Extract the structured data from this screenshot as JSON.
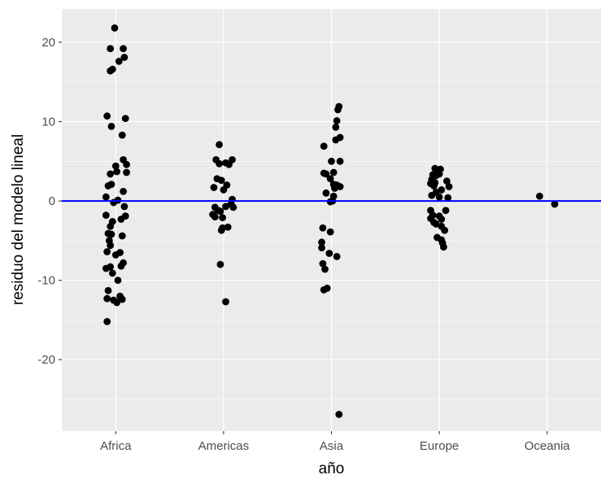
{
  "chart_data": {
    "type": "scatter",
    "title": "",
    "xlabel": "año",
    "ylabel": "residuo del modelo lineal",
    "categories": [
      "Africa",
      "Americas",
      "Asia",
      "Europe",
      "Oceania"
    ],
    "ylim": [
      -29.0,
      24.2
    ],
    "yticks": [
      -20,
      -10,
      0,
      10,
      20
    ],
    "ytick_labels": [
      "-20",
      "-10",
      "0",
      "10",
      "20"
    ],
    "grid": true,
    "panel_background": "#ebebeb",
    "grid_color": "#ffffff",
    "point_color": "#000000",
    "hline": {
      "y": 0,
      "color": "#0000ff"
    },
    "series": [
      {
        "category": "Africa",
        "points": [
          {
            "dx": -0.01,
            "y": 21.8
          },
          {
            "dx": -0.05,
            "y": 19.2
          },
          {
            "dx": 0.07,
            "y": 19.2
          },
          {
            "dx": 0.08,
            "y": 18.1
          },
          {
            "dx": 0.03,
            "y": 17.6
          },
          {
            "dx": -0.03,
            "y": 16.6
          },
          {
            "dx": -0.05,
            "y": 16.4
          },
          {
            "dx": -0.08,
            "y": 10.7
          },
          {
            "dx": 0.09,
            "y": 10.4
          },
          {
            "dx": -0.04,
            "y": 9.4
          },
          {
            "dx": 0.06,
            "y": 8.3
          },
          {
            "dx": 0.07,
            "y": 5.2
          },
          {
            "dx": 0.1,
            "y": 4.6
          },
          {
            "dx": 0.0,
            "y": 4.4
          },
          {
            "dx": 0.01,
            "y": 3.7
          },
          {
            "dx": -0.05,
            "y": 3.4
          },
          {
            "dx": 0.1,
            "y": 3.6
          },
          {
            "dx": -0.04,
            "y": 2.1
          },
          {
            "dx": -0.07,
            "y": 1.9
          },
          {
            "dx": 0.07,
            "y": 1.2
          },
          {
            "dx": -0.09,
            "y": 0.5
          },
          {
            "dx": 0.02,
            "y": 0.1
          },
          {
            "dx": -0.02,
            "y": -0.2
          },
          {
            "dx": 0.08,
            "y": -0.7
          },
          {
            "dx": -0.09,
            "y": -1.8
          },
          {
            "dx": 0.09,
            "y": -1.9
          },
          {
            "dx": 0.05,
            "y": -2.3
          },
          {
            "dx": -0.03,
            "y": -2.6
          },
          {
            "dx": -0.05,
            "y": -3.2
          },
          {
            "dx": -0.07,
            "y": -4.1
          },
          {
            "dx": 0.06,
            "y": -4.4
          },
          {
            "dx": -0.04,
            "y": -4.2
          },
          {
            "dx": -0.06,
            "y": -5.0
          },
          {
            "dx": -0.05,
            "y": -5.6
          },
          {
            "dx": -0.08,
            "y": -6.4
          },
          {
            "dx": 0.04,
            "y": -6.5
          },
          {
            "dx": 0.0,
            "y": -6.8
          },
          {
            "dx": 0.07,
            "y": -7.8
          },
          {
            "dx": 0.05,
            "y": -8.2
          },
          {
            "dx": -0.05,
            "y": -8.3
          },
          {
            "dx": -0.09,
            "y": -8.5
          },
          {
            "dx": -0.03,
            "y": -9.1
          },
          {
            "dx": 0.02,
            "y": -10.0
          },
          {
            "dx": -0.07,
            "y": -11.3
          },
          {
            "dx": 0.04,
            "y": -12.0
          },
          {
            "dx": -0.08,
            "y": -12.3
          },
          {
            "dx": -0.02,
            "y": -12.5
          },
          {
            "dx": 0.06,
            "y": -12.4
          },
          {
            "dx": 0.01,
            "y": -12.8
          },
          {
            "dx": -0.08,
            "y": -15.2
          }
        ]
      },
      {
        "category": "Americas",
        "points": [
          {
            "dx": -0.04,
            "y": 7.1
          },
          {
            "dx": 0.08,
            "y": 5.2
          },
          {
            "dx": -0.07,
            "y": 5.2
          },
          {
            "dx": 0.02,
            "y": 4.8
          },
          {
            "dx": -0.04,
            "y": 4.7
          },
          {
            "dx": 0.05,
            "y": 4.6
          },
          {
            "dx": -0.06,
            "y": 2.8
          },
          {
            "dx": -0.02,
            "y": 2.6
          },
          {
            "dx": 0.03,
            "y": 2.0
          },
          {
            "dx": -0.09,
            "y": 1.7
          },
          {
            "dx": 0.0,
            "y": 1.4
          },
          {
            "dx": 0.08,
            "y": 0.2
          },
          {
            "dx": 0.07,
            "y": -0.4
          },
          {
            "dx": -0.08,
            "y": -0.8
          },
          {
            "dx": 0.02,
            "y": -0.7
          },
          {
            "dx": 0.09,
            "y": -0.8
          },
          {
            "dx": -0.05,
            "y": -1.2
          },
          {
            "dx": -0.03,
            "y": -1.3
          },
          {
            "dx": -0.1,
            "y": -1.7
          },
          {
            "dx": -0.08,
            "y": -2.0
          },
          {
            "dx": -0.01,
            "y": -2.1
          },
          {
            "dx": 0.04,
            "y": -3.3
          },
          {
            "dx": -0.01,
            "y": -3.4
          },
          {
            "dx": -0.02,
            "y": -3.7
          },
          {
            "dx": -0.03,
            "y": -8.0
          },
          {
            "dx": 0.02,
            "y": -12.7
          }
        ]
      },
      {
        "category": "Asia",
        "points": [
          {
            "dx": 0.07,
            "y": 11.9
          },
          {
            "dx": 0.06,
            "y": 11.5
          },
          {
            "dx": 0.05,
            "y": 10.1
          },
          {
            "dx": 0.04,
            "y": 9.3
          },
          {
            "dx": 0.08,
            "y": 8.0
          },
          {
            "dx": 0.04,
            "y": 7.7
          },
          {
            "dx": -0.07,
            "y": 6.9
          },
          {
            "dx": 0.0,
            "y": 5.0
          },
          {
            "dx": 0.08,
            "y": 5.0
          },
          {
            "dx": 0.02,
            "y": 3.6
          },
          {
            "dx": -0.07,
            "y": 3.5
          },
          {
            "dx": -0.05,
            "y": 3.4
          },
          {
            "dx": -0.01,
            "y": 2.8
          },
          {
            "dx": 0.02,
            "y": 2.1
          },
          {
            "dx": 0.05,
            "y": 2.0
          },
          {
            "dx": 0.08,
            "y": 1.8
          },
          {
            "dx": 0.03,
            "y": 1.6
          },
          {
            "dx": -0.05,
            "y": 1.0
          },
          {
            "dx": 0.02,
            "y": 0.6
          },
          {
            "dx": 0.01,
            "y": 0.0
          },
          {
            "dx": -0.01,
            "y": -0.1
          },
          {
            "dx": -0.08,
            "y": -3.4
          },
          {
            "dx": -0.01,
            "y": -3.9
          },
          {
            "dx": -0.09,
            "y": -5.2
          },
          {
            "dx": -0.09,
            "y": -5.9
          },
          {
            "dx": -0.02,
            "y": -6.6
          },
          {
            "dx": 0.05,
            "y": -7.0
          },
          {
            "dx": -0.08,
            "y": -7.9
          },
          {
            "dx": -0.06,
            "y": -8.6
          },
          {
            "dx": -0.04,
            "y": -11.0
          },
          {
            "dx": -0.07,
            "y": -11.2
          },
          {
            "dx": 0.07,
            "y": -26.9
          }
        ]
      },
      {
        "category": "Europe",
        "points": [
          {
            "dx": -0.04,
            "y": 4.1
          },
          {
            "dx": 0.01,
            "y": 4.0
          },
          {
            "dx": -0.01,
            "y": 3.6
          },
          {
            "dx": 0.0,
            "y": 3.4
          },
          {
            "dx": -0.06,
            "y": 3.3
          },
          {
            "dx": -0.03,
            "y": 3.2
          },
          {
            "dx": -0.07,
            "y": 2.7
          },
          {
            "dx": 0.07,
            "y": 2.5
          },
          {
            "dx": -0.04,
            "y": 2.3
          },
          {
            "dx": -0.08,
            "y": 2.2
          },
          {
            "dx": -0.05,
            "y": 1.9
          },
          {
            "dx": 0.09,
            "y": 1.8
          },
          {
            "dx": 0.02,
            "y": 1.4
          },
          {
            "dx": -0.03,
            "y": 1.1
          },
          {
            "dx": -0.07,
            "y": 0.7
          },
          {
            "dx": 0.0,
            "y": 0.5
          },
          {
            "dx": 0.08,
            "y": 0.4
          },
          {
            "dx": -0.08,
            "y": -1.2
          },
          {
            "dx": 0.06,
            "y": -1.2
          },
          {
            "dx": -0.06,
            "y": -1.8
          },
          {
            "dx": 0.0,
            "y": -1.9
          },
          {
            "dx": -0.08,
            "y": -2.2
          },
          {
            "dx": 0.02,
            "y": -2.3
          },
          {
            "dx": -0.05,
            "y": -2.7
          },
          {
            "dx": -0.03,
            "y": -2.9
          },
          {
            "dx": 0.02,
            "y": -3.2
          },
          {
            "dx": 0.05,
            "y": -3.7
          },
          {
            "dx": -0.02,
            "y": -4.6
          },
          {
            "dx": 0.02,
            "y": -4.9
          },
          {
            "dx": 0.03,
            "y": -5.3
          },
          {
            "dx": 0.04,
            "y": -5.8
          }
        ]
      },
      {
        "category": "Oceania",
        "points": [
          {
            "dx": -0.07,
            "y": 0.6
          },
          {
            "dx": 0.07,
            "y": -0.4
          }
        ]
      }
    ]
  }
}
